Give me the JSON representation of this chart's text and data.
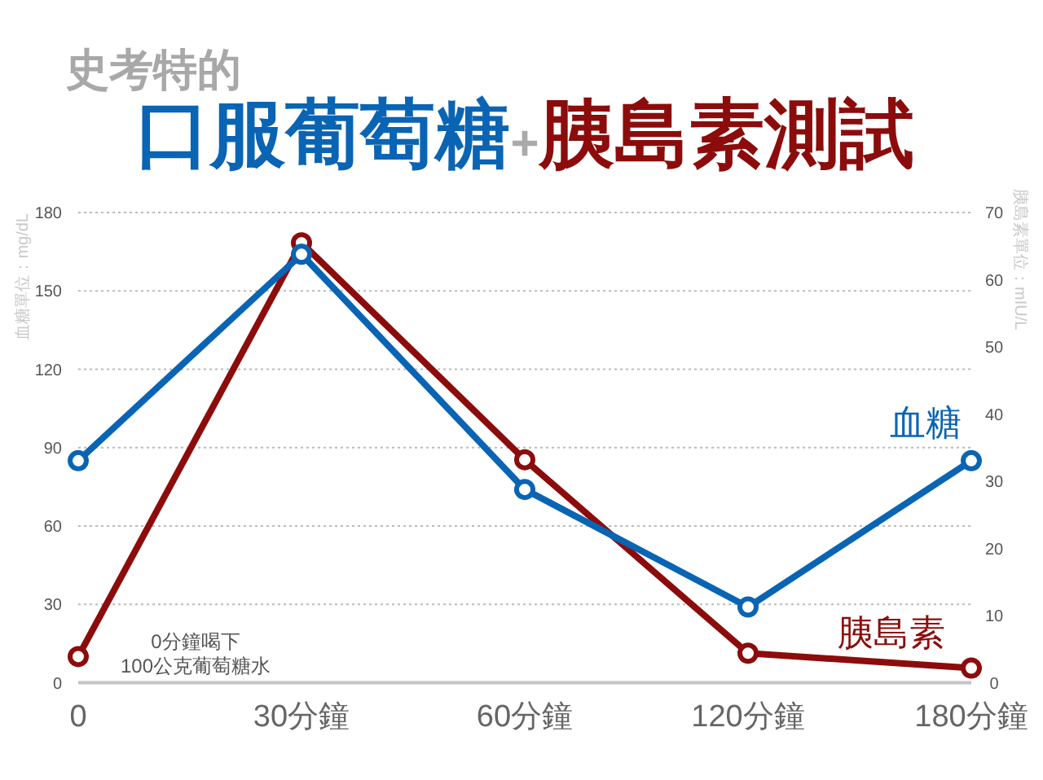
{
  "chart_data": {
    "type": "line",
    "subtitle": "史考特的",
    "title": "口服葡萄糖+胰島素測試",
    "ylabel": "血糖單位：mg/dL",
    "y2label": "胰島素單位：mIU/L",
    "categories": [
      "0",
      "30分鐘",
      "60分鐘",
      "120分鐘",
      "180分鐘"
    ],
    "series": [
      {
        "name": "血糖",
        "color": "#0a64b4",
        "values": [
          85,
          164,
          74,
          29,
          85
        ]
      },
      {
        "name": "胰島素",
        "color": "#8c0c0c",
        "axis": "y2",
        "values": [
          3.9,
          65.5,
          33.2,
          4.4,
          2.2
        ]
      }
    ],
    "ylim": [
      0,
      180
    ],
    "yticks": [
      0,
      30,
      60,
      90,
      120,
      150,
      180
    ],
    "y2lim": [
      0,
      70
    ],
    "y2ticks": [
      0,
      10,
      20,
      30,
      40,
      50,
      60,
      70
    ],
    "annotations": [
      "0分鐘喝下\n100公克葡萄糖水"
    ],
    "grid": "y",
    "marker": "circle",
    "line_style": "solid"
  }
}
